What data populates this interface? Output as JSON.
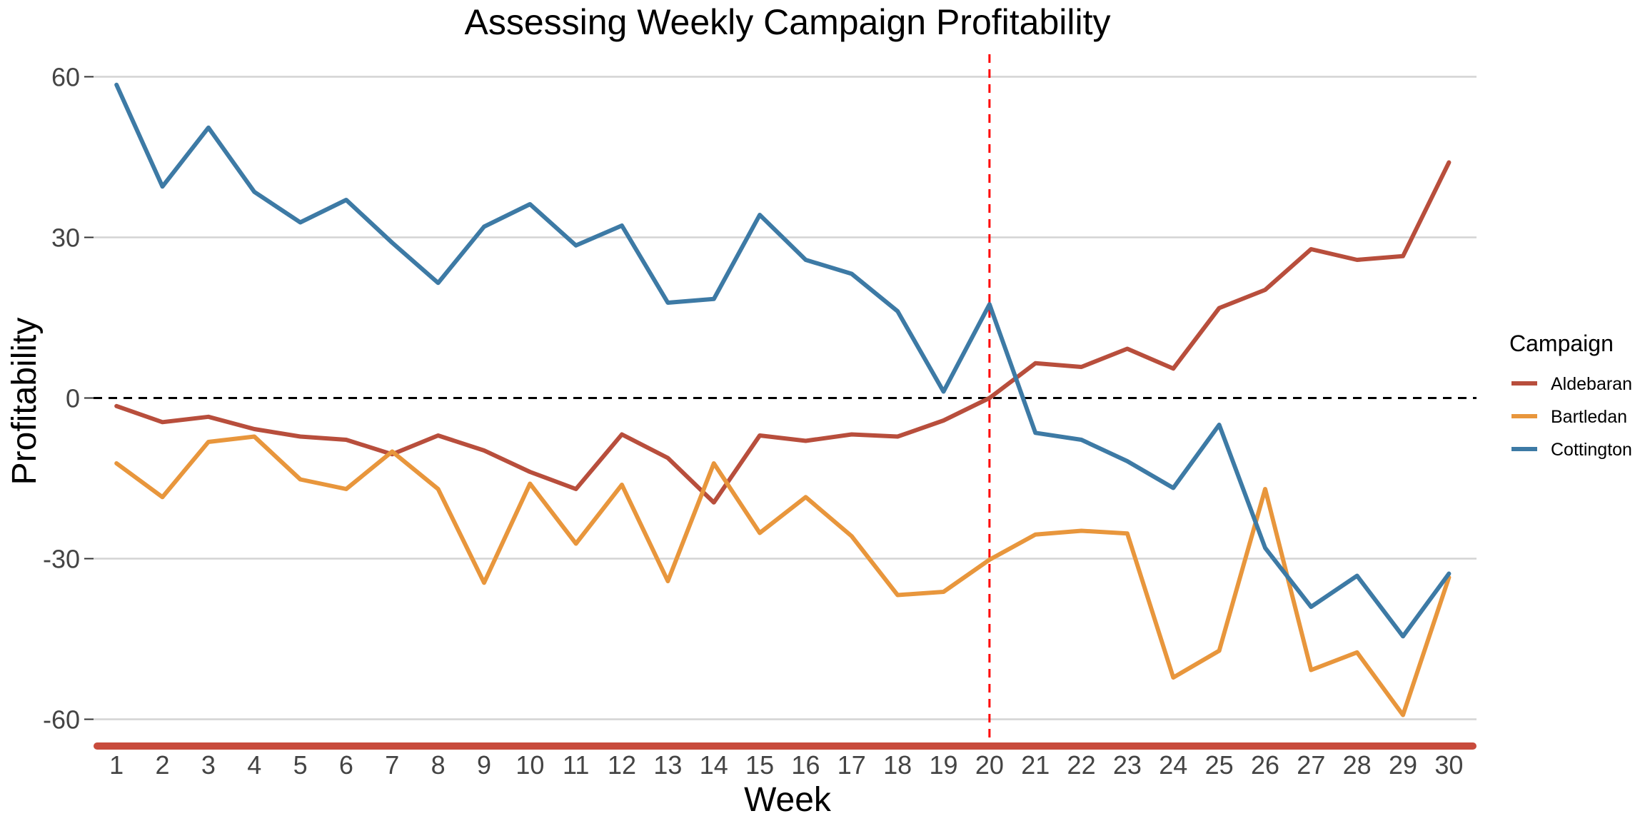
{
  "chart_data": {
    "type": "line",
    "title": "Assessing Weekly Campaign Profitability",
    "xlabel": "Week",
    "ylabel": "Profitability",
    "x": [
      1,
      2,
      3,
      4,
      5,
      6,
      7,
      8,
      9,
      10,
      11,
      12,
      13,
      14,
      15,
      16,
      17,
      18,
      19,
      20,
      21,
      22,
      23,
      24,
      25,
      26,
      27,
      28,
      29,
      30
    ],
    "xlim": [
      0.5,
      30.6
    ],
    "ylim": [
      -65,
      65
    ],
    "y_ticks": [
      60,
      30,
      0,
      -30,
      -60
    ],
    "y_tick_labels": [
      "60",
      "30",
      "0",
      "-30",
      "-60"
    ],
    "grid": true,
    "legend_title": "Campaign",
    "legend_position": "right",
    "reference_lines": [
      {
        "axis": "y",
        "value": 0,
        "style": "dashed",
        "color": "#000000"
      },
      {
        "axis": "x",
        "value": 20,
        "style": "dashed",
        "color": "#ff0000"
      }
    ],
    "series": [
      {
        "name": "Aldebaran",
        "color": "#b84e3c",
        "values": [
          -1.5,
          -4.5,
          -3.5,
          -5.8,
          -7.2,
          -7.8,
          -10.5,
          -7.0,
          -9.8,
          -13.8,
          -17.0,
          -6.8,
          -11.2,
          -19.5,
          -7.0,
          -8.0,
          -6.8,
          -7.2,
          -4.2,
          0.0,
          6.5,
          5.8,
          9.2,
          5.5,
          16.8,
          20.2,
          27.8,
          25.8,
          26.5,
          44.0
        ]
      },
      {
        "name": "Bartledan",
        "color": "#e8963c",
        "values": [
          -12.2,
          -18.5,
          -8.2,
          -7.2,
          -15.2,
          -17.0,
          -10.0,
          -17.0,
          -34.5,
          -16.0,
          -27.2,
          -16.2,
          -34.2,
          -12.2,
          -25.2,
          -18.5,
          -25.8,
          -36.8,
          -36.2,
          -30.2,
          -25.5,
          -24.8,
          -25.3,
          -52.2,
          -47.2,
          -17.0,
          -50.8,
          -47.5,
          -59.2,
          -33.5
        ]
      },
      {
        "name": "Cottington",
        "color": "#3d7aa5",
        "values": [
          58.5,
          39.5,
          50.5,
          38.5,
          32.8,
          37.0,
          29.0,
          21.5,
          32.0,
          36.2,
          28.5,
          32.2,
          17.8,
          18.5,
          34.2,
          25.8,
          23.2,
          16.2,
          1.2,
          17.5,
          -6.5,
          -7.8,
          -11.8,
          -16.8,
          -5.0,
          -28.0,
          -39.0,
          -33.2,
          -44.5,
          -32.8
        ]
      }
    ]
  }
}
